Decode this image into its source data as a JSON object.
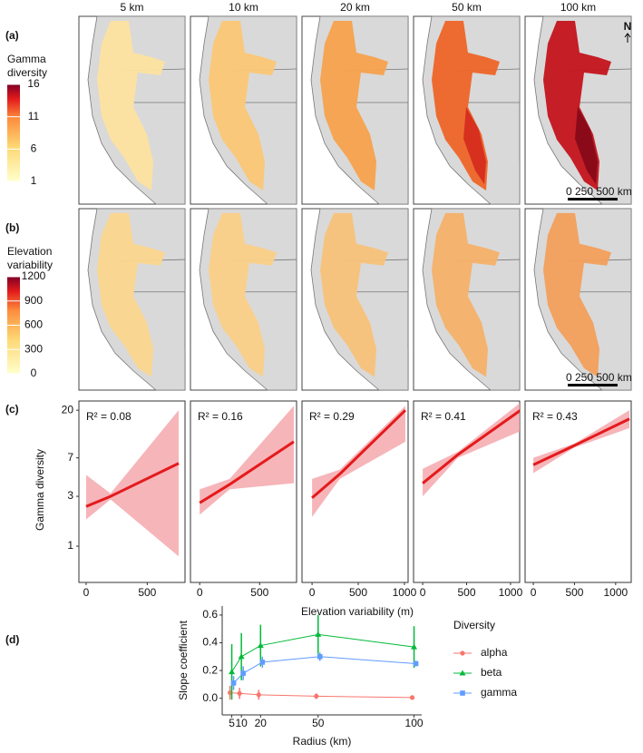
{
  "column_headers": [
    "5 km",
    "10 km",
    "20 km",
    "50 km",
    "100 km"
  ],
  "scale_bar": "0  250 500 km",
  "north": "N",
  "chart_data": [
    {
      "type": "map",
      "panel_label": "(a)",
      "legend_title": [
        "Gamma",
        "diversity"
      ],
      "colorbar_lim": [
        1,
        16
      ],
      "colorbar_ticks": [
        16,
        11,
        6,
        1
      ]
    },
    {
      "type": "map",
      "panel_label": "(b)",
      "legend_title": [
        "Elevation",
        "variability"
      ],
      "colorbar_lim": [
        0,
        1200
      ],
      "colorbar_ticks": [
        1200,
        900,
        600,
        300,
        0
      ]
    },
    {
      "type": "regression",
      "panel_label": "(c)",
      "y_label": "Gamma diversity",
      "x_label": "Elevation variability (m)",
      "log_y": true,
      "ylim": [
        0.45,
        24.5
      ],
      "yticks": [
        1,
        3,
        7,
        20
      ],
      "line_color": "#e41a1c",
      "band_color": "#f4a3a8",
      "panels": [
        {
          "annotation": "R² = 0.08",
          "xlim": [
            -59,
            809
          ],
          "xticks": [
            0,
            500
          ],
          "fit_x": [
            0,
            200,
            757
          ],
          "fit_y": [
            2.4,
            3.0,
            6.2
          ],
          "ci_lower": [
            1.8,
            2.8,
            0.8
          ],
          "ci_upper": [
            4.8,
            3.2,
            20
          ]
        },
        {
          "annotation": "R² = 0.16",
          "xlim": [
            -77,
            808
          ],
          "xticks": [
            0,
            500
          ],
          "fit_x": [
            0,
            250,
            785
          ],
          "fit_y": [
            2.6,
            3.9,
            10
          ],
          "ci_lower": [
            2,
            3.5,
            4
          ],
          "ci_upper": [
            3.5,
            4.4,
            22
          ]
        },
        {
          "annotation": "R² = 0.29",
          "xlim": [
            -109,
            1040
          ],
          "xticks": [
            0,
            500,
            1000
          ],
          "fit_x": [
            0,
            300,
            1010
          ],
          "fit_y": [
            2.9,
            4.9,
            20
          ],
          "ci_lower": [
            1.9,
            4.4,
            10
          ],
          "ci_upper": [
            4.4,
            5.4,
            22
          ]
        },
        {
          "annotation": "R² = 0.41",
          "xlim": [
            -104,
            1104
          ],
          "xticks": [
            0,
            500,
            1000
          ],
          "fit_x": [
            0,
            400,
            1150
          ],
          "fit_y": [
            4,
            7.5,
            21
          ],
          "ci_lower": [
            3,
            7,
            13
          ],
          "ci_upper": [
            5.5,
            8,
            25
          ]
        },
        {
          "annotation": "R² = 0.43",
          "xlim": [
            -100,
            1189
          ],
          "xticks": [
            0,
            500,
            1000
          ],
          "fit_x": [
            0,
            500,
            1167
          ],
          "fit_y": [
            6,
            9.2,
            16.5
          ],
          "ci_lower": [
            5,
            8.8,
            13.5
          ],
          "ci_upper": [
            7,
            9.6,
            20
          ]
        }
      ]
    },
    {
      "type": "line",
      "panel_label": "(d)",
      "y_label": "Slope coefficient",
      "x_label": "Radius (km)",
      "legend_title": "Diversity",
      "x": [
        5,
        10,
        20,
        50,
        100
      ],
      "xlim": [
        0,
        104
      ],
      "xticks": [
        5,
        10,
        20,
        50,
        100
      ],
      "ylim": [
        -0.12,
        0.665
      ],
      "yticks": [
        {
          "value": 0,
          "label": "0.0"
        },
        0.2,
        0.4,
        0.6
      ],
      "series": [
        {
          "name": "alpha",
          "color": "#f8766d",
          "marker": "circle",
          "values": [
            0.04,
            0.035,
            0.025,
            0.015,
            0.005
          ],
          "errors": [
            0.05,
            0.04,
            0.035,
            0.02,
            0.01
          ]
        },
        {
          "name": "beta",
          "color": "#00ba38",
          "marker": "triangle",
          "values": [
            0.19,
            0.3,
            0.38,
            0.46,
            0.37
          ],
          "errors": [
            0.2,
            0.17,
            0.15,
            0.14,
            0.15
          ]
        },
        {
          "name": "gamma",
          "color": "#619cff",
          "marker": "square",
          "values": [
            0.11,
            0.18,
            0.26,
            0.3,
            0.25
          ],
          "errors": [
            0.05,
            0.05,
            0.04,
            0.03,
            0.02
          ]
        }
      ]
    }
  ]
}
